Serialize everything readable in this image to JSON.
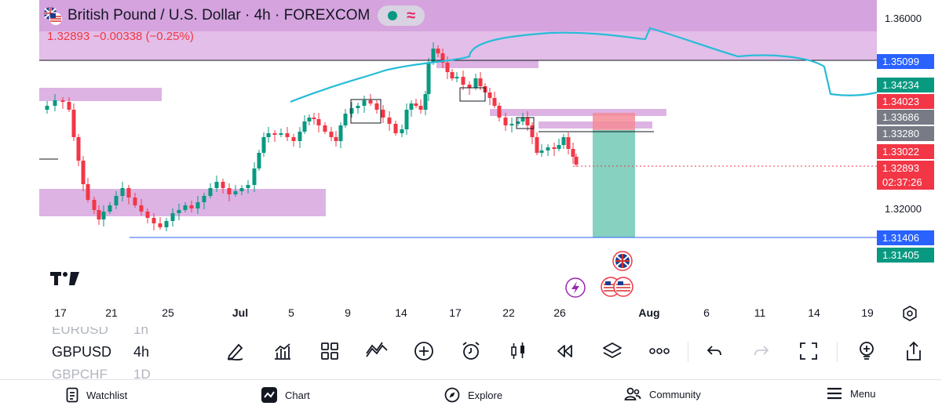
{
  "header": {
    "title": "British Pound / U.S. Dollar · 4h · FOREXCOM",
    "price_change": "1.32893  −0.00338 (−0.25%)"
  },
  "price_axis": {
    "labels": [
      "1.36000",
      "1.32000"
    ],
    "tags": [
      {
        "text": "1.35099",
        "color": "#2962ff"
      },
      {
        "text": "1.34234",
        "color": "#089981"
      },
      {
        "text": "1.34023",
        "color": "#f23645"
      },
      {
        "text": "1.33686",
        "color": "#787b86"
      },
      {
        "text": "1.33280",
        "color": "#787b86"
      },
      {
        "text": "1.33022",
        "color": "#f23645"
      },
      {
        "text": "1.32893",
        "color": "#f23645"
      },
      {
        "text": "02:37:26",
        "color": "#f23645"
      },
      {
        "text": "1.31406",
        "color": "#2962ff"
      },
      {
        "text": "1.31405",
        "color": "#089981"
      }
    ]
  },
  "time_axis": {
    "labels": [
      "17",
      "21",
      "25",
      "Jul",
      "5",
      "9",
      "14",
      "17",
      "22",
      "26",
      "Aug",
      "6",
      "11",
      "14",
      "19"
    ]
  },
  "watchlist": {
    "rows": [
      {
        "symbol": "EURUSD",
        "interval": "1h"
      },
      {
        "symbol": "GBPUSD",
        "interval": "4h"
      },
      {
        "symbol": "GBPCHF",
        "interval": "1D"
      }
    ]
  },
  "toolbar": {
    "icons": [
      "pencil-icon",
      "indicators-icon",
      "layouts-icon",
      "patterns-icon",
      "add-icon",
      "alert-icon",
      "candles-icon",
      "replay-icon",
      "layers-icon",
      "more-icon",
      "undo-icon",
      "redo-icon",
      "fullscreen-icon",
      "ideas-icon",
      "share-icon"
    ]
  },
  "nav": {
    "watchlist": "Watchlist",
    "chart": "Chart",
    "explore": "Explore",
    "community": "Community",
    "menu": "Menu"
  },
  "colors": {
    "up": "#089981",
    "down": "#f23645",
    "zone": "#ce93d8",
    "curve": "#26bcd7",
    "target": "#7fcfbd",
    "stop": "#f48b98",
    "line": "#2962ff"
  }
}
